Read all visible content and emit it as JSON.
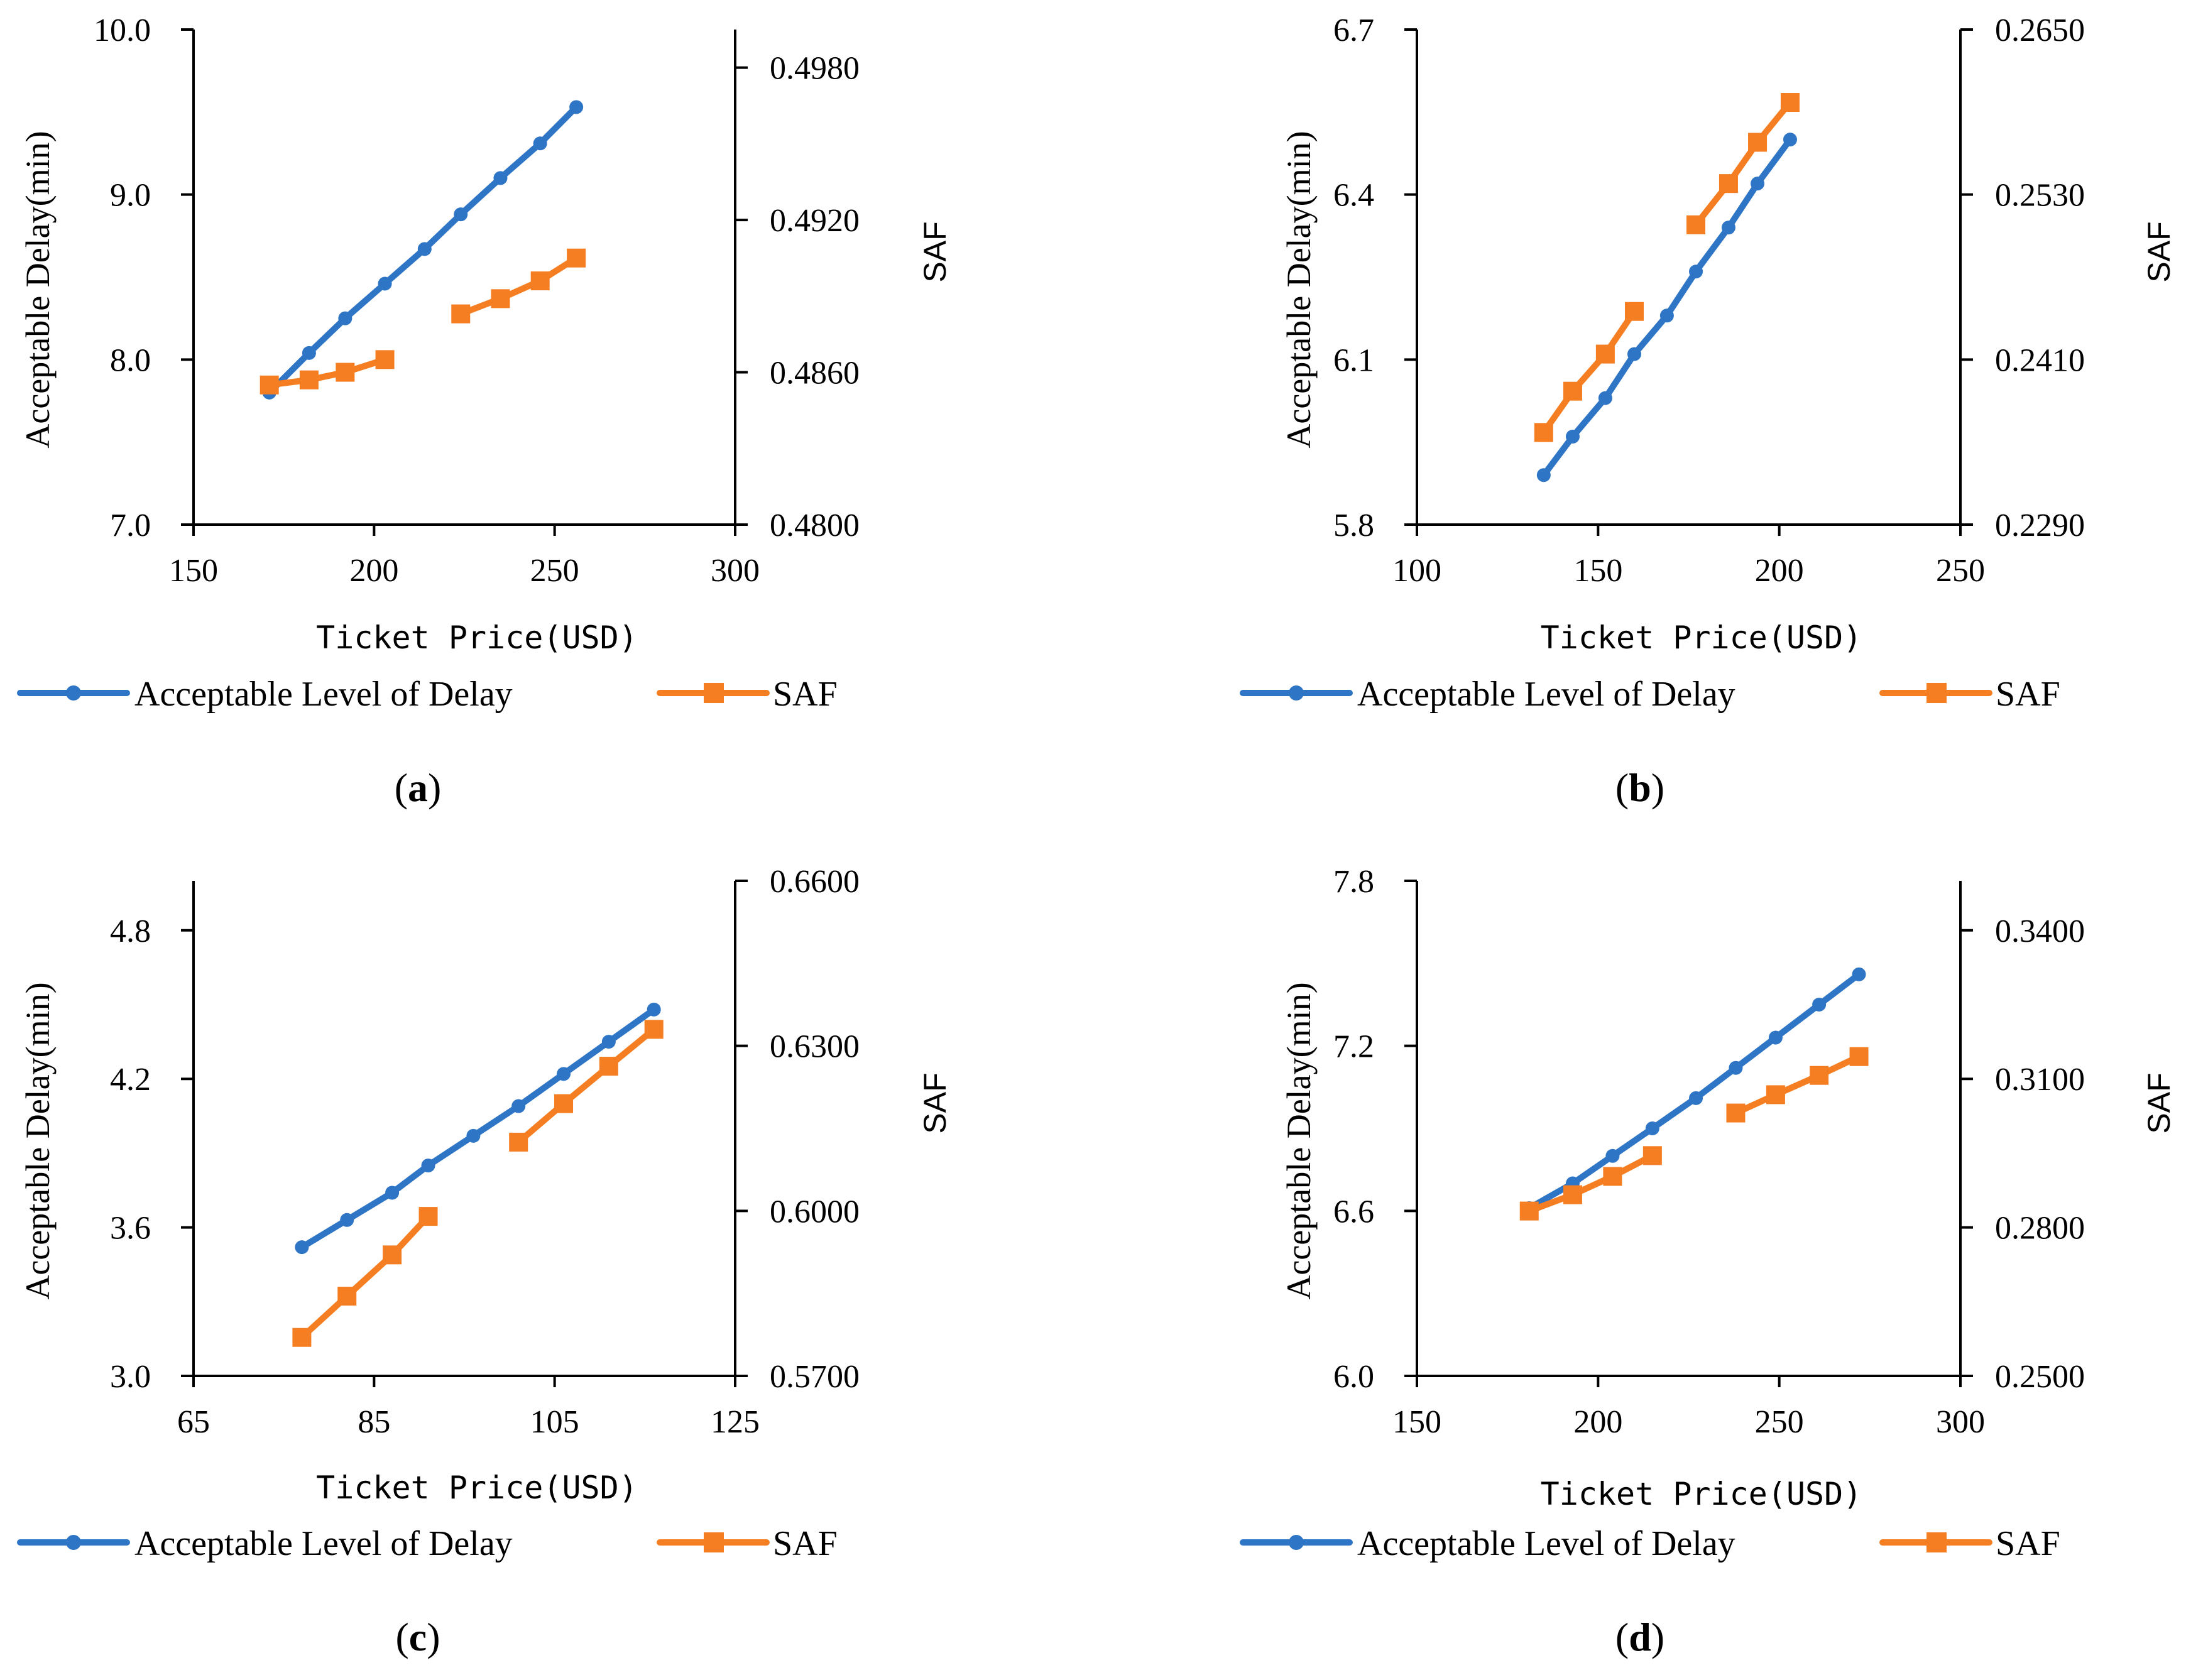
{
  "colors": {
    "delay": "#2E75C6",
    "saf": "#F57E22",
    "axis": "#000000"
  },
  "legend": {
    "delay_label": "Acceptable Level of Delay",
    "saf_label": "SAF"
  },
  "chart_data": [
    {
      "id": "a",
      "type": "line",
      "panel_label": "a",
      "xlabel": "Ticket Price(USD)",
      "ylabel": "Acceptable Delay(min)",
      "y2label": "SAF",
      "xlim": [
        150,
        300
      ],
      "xticks": [
        "150",
        "200",
        "250",
        "300"
      ],
      "ylim": [
        7.0,
        10.0
      ],
      "yticks": [
        "7.0",
        "8.0",
        "9.0",
        "10.0"
      ],
      "y2lim": [
        0.48,
        0.4995
      ],
      "y2ticks": [
        "0.4800",
        "0.4860",
        "0.4920",
        "0.4980"
      ],
      "series": [
        {
          "name": "Acceptable Level of Delay",
          "axis": "left",
          "segments": [
            [
              [
                171,
                7.8
              ],
              [
                182,
                8.04
              ],
              [
                192,
                8.25
              ],
              [
                203,
                8.46
              ],
              [
                214,
                8.67
              ],
              [
                224,
                8.88
              ],
              [
                235,
                9.1
              ],
              [
                246,
                9.31
              ],
              [
                256,
                9.53
              ]
            ]
          ]
        },
        {
          "name": "SAF",
          "axis": "right",
          "segments": [
            [
              [
                171,
                0.4855
              ],
              [
                182,
                0.4857
              ],
              [
                192,
                0.486
              ],
              [
                203,
                0.4865
              ]
            ],
            [
              [
                224,
                0.4883
              ],
              [
                235,
                0.4889
              ],
              [
                246,
                0.4896
              ],
              [
                256,
                0.4905
              ]
            ]
          ]
        }
      ]
    },
    {
      "id": "b",
      "type": "line",
      "panel_label": "b",
      "xlabel": "Ticket Price(USD)",
      "ylabel": "Acceptable Delay(min)",
      "y2label": "SAF",
      "xlim": [
        100,
        250
      ],
      "xticks": [
        "100",
        "150",
        "200",
        "250"
      ],
      "ylim": [
        5.8,
        6.7
      ],
      "yticks": [
        "5.8",
        "6.1",
        "6.4",
        "6.7"
      ],
      "y2lim": [
        0.229,
        0.265
      ],
      "y2ticks": [
        "0.2290",
        "0.2410",
        "0.2530",
        "0.2650"
      ],
      "series": [
        {
          "name": "Acceptable Level of Delay",
          "axis": "left",
          "segments": [
            [
              [
                135,
                5.89
              ],
              [
                143,
                5.96
              ],
              [
                152,
                6.03
              ],
              [
                160,
                6.11
              ],
              [
                169,
                6.18
              ],
              [
                177,
                6.26
              ],
              [
                186,
                6.34
              ],
              [
                194,
                6.42
              ],
              [
                203,
                6.5
              ]
            ]
          ]
        },
        {
          "name": "SAF",
          "axis": "right",
          "segments": [
            [
              [
                135,
                0.2357
              ],
              [
                143,
                0.2387
              ],
              [
                152,
                0.2414
              ],
              [
                160,
                0.2445
              ]
            ],
            [
              [
                177,
                0.2508
              ],
              [
                186,
                0.2538
              ],
              [
                194,
                0.2568
              ],
              [
                203,
                0.2597
              ]
            ]
          ]
        }
      ]
    },
    {
      "id": "c",
      "type": "line",
      "panel_label": "c",
      "xlabel": "Ticket Price(USD)",
      "ylabel": "Acceptable Delay(min)",
      "y2label": "SAF",
      "xlim": [
        65,
        125
      ],
      "xticks": [
        "65",
        "85",
        "105",
        "125"
      ],
      "ylim": [
        3.0,
        5.0
      ],
      "yticks": [
        "3.0",
        "3.6",
        "4.2",
        "4.8"
      ],
      "y2lim": [
        0.57,
        0.66
      ],
      "y2ticks": [
        "0.5700",
        "0.6000",
        "0.6300",
        "0.6600"
      ],
      "series": [
        {
          "name": "Acceptable Level of Delay",
          "axis": "left",
          "segments": [
            [
              [
                77,
                3.52
              ],
              [
                82,
                3.63
              ],
              [
                87,
                3.74
              ],
              [
                91,
                3.85
              ],
              [
                96,
                3.97
              ],
              [
                101,
                4.09
              ],
              [
                106,
                4.22
              ],
              [
                111,
                4.35
              ],
              [
                116,
                4.48
              ]
            ]
          ]
        },
        {
          "name": "SAF",
          "axis": "right",
          "segments": [
            [
              [
                77,
                0.577
              ],
              [
                82,
                0.5845
              ],
              [
                87,
                0.592
              ],
              [
                91,
                0.599
              ]
            ],
            [
              [
                101,
                0.6125
              ],
              [
                106,
                0.6195
              ],
              [
                111,
                0.6263
              ],
              [
                116,
                0.633
              ]
            ]
          ]
        }
      ]
    },
    {
      "id": "d",
      "type": "line",
      "panel_label": "d",
      "xlabel": "Ticket Price(USD)",
      "ylabel": "Acceptable Delay(min)",
      "y2label": "SAF",
      "xlim": [
        150,
        300
      ],
      "xticks": [
        "150",
        "200",
        "250",
        "300"
      ],
      "ylim": [
        6.0,
        7.8
      ],
      "yticks": [
        "6.0",
        "6.6",
        "7.2",
        "7.8"
      ],
      "y2lim": [
        0.25,
        0.35
      ],
      "y2ticks": [
        "0.2500",
        "0.2800",
        "0.3100",
        "0.3400"
      ],
      "series": [
        {
          "name": "Acceptable Level of Delay",
          "axis": "left",
          "segments": [
            [
              [
                181,
                6.61
              ],
              [
                193,
                6.7
              ],
              [
                204,
                6.8
              ],
              [
                215,
                6.9
              ],
              [
                227,
                7.01
              ],
              [
                238,
                7.12
              ],
              [
                249,
                7.23
              ],
              [
                261,
                7.35
              ],
              [
                272,
                7.46
              ]
            ]
          ]
        },
        {
          "name": "SAF",
          "axis": "right",
          "segments": [
            [
              [
                181,
                0.2833
              ],
              [
                193,
                0.2866
              ],
              [
                204,
                0.2903
              ],
              [
                215,
                0.2945
              ]
            ],
            [
              [
                238,
                0.3031
              ],
              [
                249,
                0.3068
              ],
              [
                261,
                0.3107
              ],
              [
                272,
                0.3145
              ]
            ]
          ]
        }
      ]
    }
  ]
}
